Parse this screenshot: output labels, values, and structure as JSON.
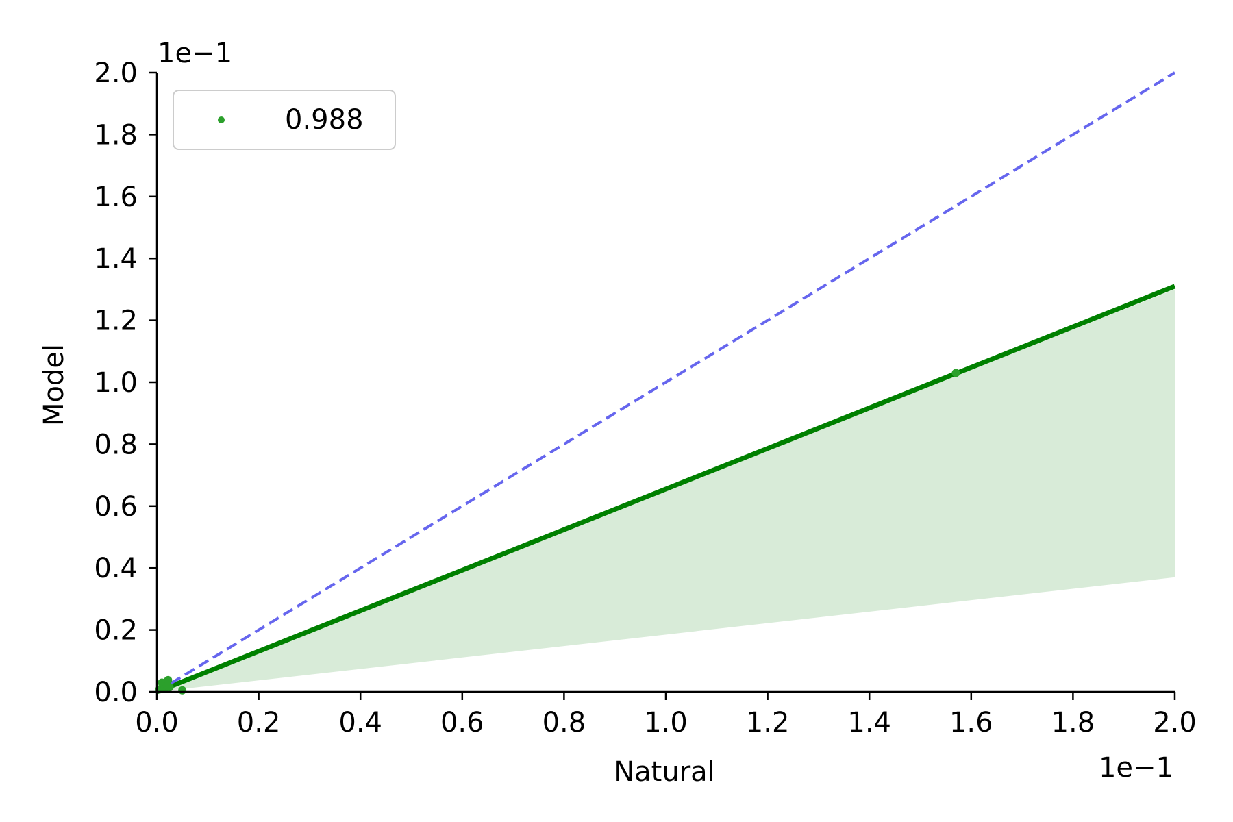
{
  "chart_data": {
    "type": "scatter",
    "xlabel": "Natural",
    "ylabel": "Model",
    "x_offset_label": "1e−1",
    "y_offset_label": "1e−1",
    "xlim": [
      0.0,
      0.2
    ],
    "ylim": [
      0.0,
      0.2
    ],
    "x_ticks": [
      0.0,
      0.02,
      0.04,
      0.06,
      0.08,
      0.1,
      0.12,
      0.14,
      0.16,
      0.18,
      0.2
    ],
    "y_ticks": [
      0.0,
      0.02,
      0.04,
      0.06,
      0.08,
      0.1,
      0.12,
      0.14,
      0.16,
      0.18,
      0.2
    ],
    "x_tick_labels": [
      "0.0",
      "0.2",
      "0.4",
      "0.6",
      "0.8",
      "1.0",
      "1.2",
      "1.4",
      "1.6",
      "1.8",
      "2.0"
    ],
    "y_tick_labels": [
      "0.0",
      "0.2",
      "0.4",
      "0.6",
      "0.8",
      "1.0",
      "1.2",
      "1.4",
      "1.6",
      "1.8",
      "2.0"
    ],
    "grid": false,
    "legend_position": "top-left",
    "colors": {
      "points": "#2ca02c",
      "fit_line": "#008000",
      "band": "#d8ebd8",
      "identity_line": "#6666ee"
    },
    "series": [
      {
        "name": "0.988",
        "kind": "scatter",
        "points": [
          {
            "x": 0.0005,
            "y": 0.0008
          },
          {
            "x": 0.001,
            "y": 0.003
          },
          {
            "x": 0.0015,
            "y": 0.001
          },
          {
            "x": 0.002,
            "y": 0.002
          },
          {
            "x": 0.0022,
            "y": 0.0038
          },
          {
            "x": 0.0025,
            "y": 0.0015
          },
          {
            "x": 0.005,
            "y": 0.0005
          },
          {
            "x": 0.157,
            "y": 0.103
          }
        ]
      },
      {
        "kind": "regression",
        "x": [
          0.0,
          0.2
        ],
        "y": [
          0.0,
          0.131
        ]
      },
      {
        "kind": "confidence_band",
        "x": [
          0.0,
          0.2
        ],
        "lower": [
          0.0,
          0.037
        ],
        "upper": [
          0.0,
          0.13
        ]
      },
      {
        "kind": "identity",
        "style": "dashed",
        "x": [
          0.0,
          0.2
        ],
        "y": [
          0.0,
          0.2
        ]
      }
    ]
  }
}
